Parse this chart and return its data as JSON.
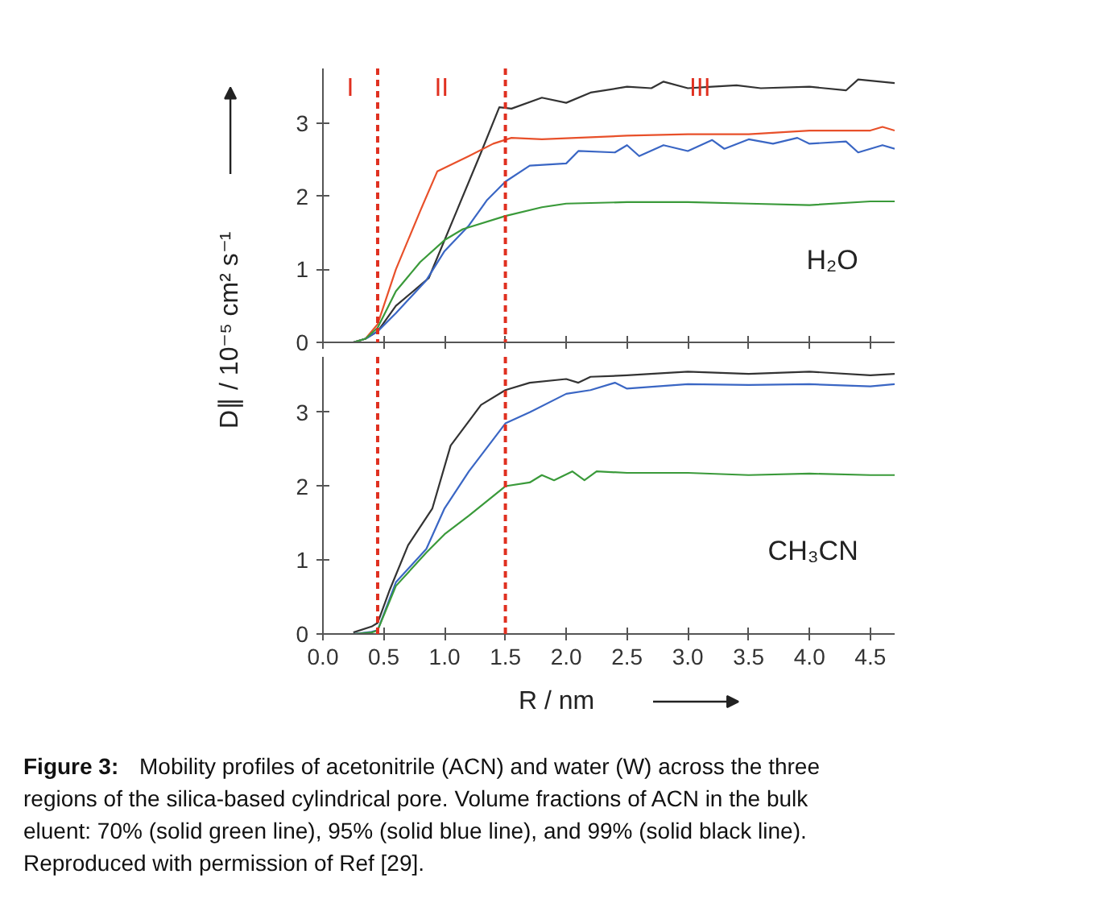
{
  "chart_data": [
    {
      "type": "line",
      "ylabel": "D∥ / 10⁻⁵ cm² s⁻¹",
      "xlim": [
        0,
        4.7
      ],
      "xticks": [
        0,
        0.5,
        1,
        1.5,
        2,
        2.5,
        3,
        3.5,
        4,
        4.5
      ],
      "ylim": [
        0,
        3.75
      ],
      "yticks": [
        0,
        1,
        2,
        3
      ],
      "tick_labels": "y",
      "grid": false,
      "ref_lines": [
        {
          "axis": "x",
          "value": 0.45,
          "color": "#e03020",
          "line_style": "dashed"
        },
        {
          "axis": "x",
          "value": 1.5,
          "color": "#e03020",
          "line_style": "dashed"
        }
      ],
      "annotations": [
        "H₂O",
        "I",
        "II",
        "III"
      ],
      "series": [
        {
          "color": "#333333",
          "x": [
            0.15,
            0.25,
            0.35,
            0.45,
            0.6,
            0.87,
            1.1,
            1.3,
            1.45,
            1.55,
            1.8,
            2.0,
            2.2,
            2.5,
            2.7,
            2.8,
            3.0,
            3.2,
            3.4,
            3.6,
            4.0,
            4.3,
            4.4,
            4.7
          ],
          "values": [
            0,
            0,
            0.05,
            0.15,
            0.5,
            0.88,
            1.8,
            2.6,
            3.22,
            3.2,
            3.35,
            3.28,
            3.42,
            3.5,
            3.48,
            3.57,
            3.48,
            3.5,
            3.52,
            3.48,
            3.5,
            3.45,
            3.6,
            3.55
          ]
        },
        {
          "color": "#e8502a",
          "x": [
            0.15,
            0.25,
            0.35,
            0.45,
            0.6,
            0.8,
            0.94,
            1.2,
            1.4,
            1.55,
            1.8,
            2.5,
            3.0,
            3.5,
            4.0,
            4.5,
            4.6,
            4.7
          ],
          "values": [
            0,
            0,
            0.05,
            0.25,
            1.0,
            1.8,
            2.34,
            2.55,
            2.72,
            2.8,
            2.78,
            2.83,
            2.85,
            2.85,
            2.9,
            2.9,
            2.95,
            2.9
          ]
        },
        {
          "color": "#3a66c4",
          "x": [
            0.15,
            0.25,
            0.35,
            0.45,
            0.6,
            0.85,
            1.0,
            1.2,
            1.35,
            1.5,
            1.7,
            2.0,
            2.1,
            2.4,
            2.5,
            2.6,
            2.8,
            3.0,
            3.2,
            3.3,
            3.5,
            3.7,
            3.9,
            4.0,
            4.3,
            4.4,
            4.6,
            4.7
          ],
          "values": [
            0,
            0,
            0.05,
            0.15,
            0.4,
            0.85,
            1.25,
            1.6,
            1.95,
            2.2,
            2.42,
            2.45,
            2.62,
            2.6,
            2.7,
            2.55,
            2.7,
            2.62,
            2.77,
            2.65,
            2.78,
            2.72,
            2.8,
            2.72,
            2.75,
            2.6,
            2.7,
            2.65
          ]
        },
        {
          "color": "#3a9a3a",
          "x": [
            0.15,
            0.25,
            0.35,
            0.45,
            0.6,
            0.8,
            1.0,
            1.15,
            1.5,
            1.8,
            2.0,
            2.5,
            3.0,
            3.5,
            4.0,
            4.5,
            4.7
          ],
          "values": [
            0,
            0,
            0.05,
            0.2,
            0.7,
            1.1,
            1.4,
            1.55,
            1.73,
            1.85,
            1.9,
            1.92,
            1.92,
            1.9,
            1.88,
            1.93,
            1.93
          ]
        }
      ]
    },
    {
      "type": "line",
      "xlabel": "R / nm",
      "xlim": [
        0,
        4.7
      ],
      "xticks": [
        {
          "value": 0,
          "label": "0.0"
        },
        {
          "value": 0.5,
          "label": "0.5"
        },
        {
          "value": 1,
          "label": "1.0"
        },
        {
          "value": 1.5,
          "label": "1.5"
        },
        {
          "value": 2,
          "label": "2.0"
        },
        {
          "value": 2.5,
          "label": "2.5"
        },
        {
          "value": 3,
          "label": "3.0"
        },
        {
          "value": 3.5,
          "label": "3.5"
        },
        {
          "value": 4,
          "label": "4.0"
        },
        {
          "value": 4.5,
          "label": "4.5"
        }
      ],
      "ylim": [
        0,
        3.75
      ],
      "yticks": [
        0,
        1,
        2,
        3
      ],
      "grid": false,
      "ref_lines": [
        {
          "axis": "x",
          "value": 0.45,
          "color": "#e03020",
          "line_style": "dashed"
        },
        {
          "axis": "x",
          "value": 1.5,
          "color": "#e03020",
          "line_style": "dashed"
        }
      ],
      "annotations": [
        "CH₃CN",
        "Figure 3:",
        "Mobility profiles of acetonitrile (ACN) and water (W) across the three regions of the silica-based cylindrical pore. Volume fractions of ACN in the bulk eluent: 70% (solid green line), 95% (solid blue line), and 99% (solid black line). Reproduced with permission of Ref [29]."
      ],
      "series": [
        {
          "color": "#333333",
          "x": [
            0.25,
            0.4,
            0.45,
            0.55,
            0.7,
            0.9,
            1.05,
            1.3,
            1.5,
            1.7,
            2.0,
            2.1,
            2.2,
            2.5,
            3.0,
            3.5,
            4.0,
            4.5,
            4.7
          ],
          "values": [
            0.02,
            0.1,
            0.15,
            0.6,
            1.2,
            1.7,
            2.55,
            3.1,
            3.3,
            3.4,
            3.45,
            3.4,
            3.48,
            3.5,
            3.55,
            3.52,
            3.55,
            3.5,
            3.52
          ]
        },
        {
          "color": "#3a66c4",
          "x": [
            0.25,
            0.4,
            0.45,
            0.6,
            0.85,
            1.0,
            1.2,
            1.5,
            1.7,
            2.0,
            2.2,
            2.4,
            2.5,
            3.0,
            3.5,
            4.0,
            4.5,
            4.7
          ],
          "values": [
            0,
            0.03,
            0.05,
            0.7,
            1.15,
            1.7,
            2.2,
            2.85,
            3.0,
            3.25,
            3.3,
            3.4,
            3.32,
            3.38,
            3.37,
            3.38,
            3.35,
            3.38
          ]
        },
        {
          "color": "#3a9a3a",
          "x": [
            0.25,
            0.4,
            0.45,
            0.6,
            0.85,
            1.0,
            1.2,
            1.5,
            1.7,
            1.8,
            1.9,
            2.05,
            2.15,
            2.25,
            2.5,
            3.0,
            3.5,
            4.0,
            4.5,
            4.7
          ],
          "values": [
            0,
            0.02,
            0.05,
            0.65,
            1.1,
            1.35,
            1.6,
            2.0,
            2.05,
            2.15,
            2.08,
            2.2,
            2.08,
            2.2,
            2.18,
            2.18,
            2.15,
            2.17,
            2.15,
            2.15
          ]
        }
      ]
    }
  ]
}
